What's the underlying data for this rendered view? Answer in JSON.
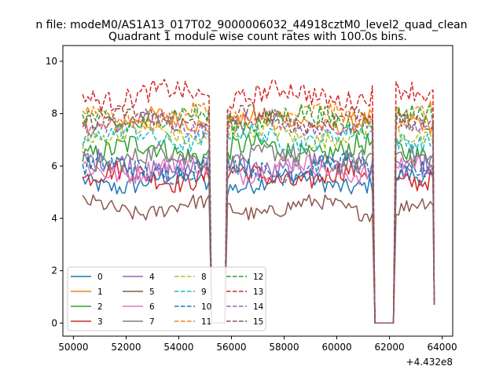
{
  "chart_data": {
    "type": "line",
    "suptitle": "n file: modeM0/AS1A13_017T02_9000006032_44918cztM0_level2_quad_clean",
    "title": "Quadrant 1 module wise count rates with 100.0s bins.",
    "xlabel": "",
    "ylabel": "",
    "x_offset_label": "+4.432e8",
    "xlim": [
      49600,
      64400
    ],
    "ylim": [
      -0.5,
      10.6
    ],
    "xticks": [
      50000,
      52000,
      54000,
      56000,
      58000,
      60000,
      62000,
      64000
    ],
    "xtick_labels": [
      "50000",
      "52000",
      "54000",
      "56000",
      "58000",
      "60000",
      "62000",
      "64000"
    ],
    "yticks": [
      0,
      2,
      4,
      6,
      8,
      10
    ],
    "ytick_labels": [
      "0",
      "2",
      "4",
      "6",
      "8",
      "10"
    ],
    "legend_position": "lower-left",
    "segments": [
      {
        "start": 50350,
        "end": 55150
      },
      {
        "start": 55850,
        "end": 61350
      },
      {
        "start": 62250,
        "end": 63650
      }
    ],
    "gaps": [
      {
        "start": 55250,
        "end": 55750
      },
      {
        "start": 61450,
        "end": 62150
      }
    ],
    "series": [
      {
        "name": "0",
        "color": "#1f77b4",
        "dash": false,
        "level": 5.4,
        "variation": 0.35
      },
      {
        "name": "1",
        "color": "#ff7f0e",
        "dash": false,
        "level": 7.7,
        "variation": 0.35
      },
      {
        "name": "2",
        "color": "#2ca02c",
        "dash": false,
        "level": 6.6,
        "variation": 0.45
      },
      {
        "name": "3",
        "color": "#d62728",
        "dash": false,
        "level": 5.6,
        "variation": 0.4
      },
      {
        "name": "4",
        "color": "#9467bd",
        "dash": false,
        "level": 6.0,
        "variation": 0.45
      },
      {
        "name": "5",
        "color": "#8c564b",
        "dash": false,
        "level": 4.4,
        "variation": 0.3
      },
      {
        "name": "6",
        "color": "#e377c2",
        "dash": false,
        "level": 5.9,
        "variation": 0.4
      },
      {
        "name": "7",
        "color": "#7f7f7f",
        "dash": false,
        "level": 6.3,
        "variation": 0.4
      },
      {
        "name": "8",
        "color": "#bcbd22",
        "dash": true,
        "level": 7.2,
        "variation": 0.35
      },
      {
        "name": "9",
        "color": "#17becf",
        "dash": true,
        "level": 7.1,
        "variation": 0.35
      },
      {
        "name": "10",
        "color": "#1f77b4",
        "dash": true,
        "level": 5.9,
        "variation": 0.4
      },
      {
        "name": "11",
        "color": "#ff7f0e",
        "dash": true,
        "level": 7.9,
        "variation": 0.35
      },
      {
        "name": "12",
        "color": "#2ca02c",
        "dash": true,
        "level": 7.8,
        "variation": 0.4
      },
      {
        "name": "13",
        "color": "#d62728",
        "dash": true,
        "level": 8.7,
        "variation": 0.4
      },
      {
        "name": "14",
        "color": "#9467bd",
        "dash": true,
        "level": 7.6,
        "variation": 0.35
      },
      {
        "name": "15",
        "color": "#8c564b",
        "dash": true,
        "level": 7.8,
        "variation": 0.35
      }
    ],
    "end_value": 0.7
  }
}
